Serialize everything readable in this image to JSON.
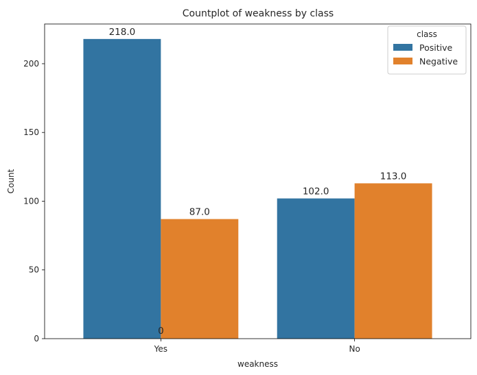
{
  "chart_data": {
    "type": "bar",
    "title": "Countplot of weakness by class",
    "xlabel": "weakness",
    "ylabel": "Count",
    "categories": [
      "Yes",
      "No"
    ],
    "series": [
      {
        "name": "Positive",
        "color": "#3274a1",
        "values": [
          218,
          102
        ]
      },
      {
        "name": "Negative",
        "color": "#e1812c",
        "values": [
          87,
          113
        ]
      }
    ],
    "bar_labels": [
      [
        "218.0",
        "102.0"
      ],
      [
        "87.0",
        "113.0"
      ]
    ],
    "extra_annotation": "0",
    "ylim": [
      0,
      228.9
    ],
    "yticks": [
      0,
      50,
      100,
      150,
      200
    ],
    "legend": {
      "title": "class",
      "placement": "top-right"
    },
    "grid": false
  }
}
